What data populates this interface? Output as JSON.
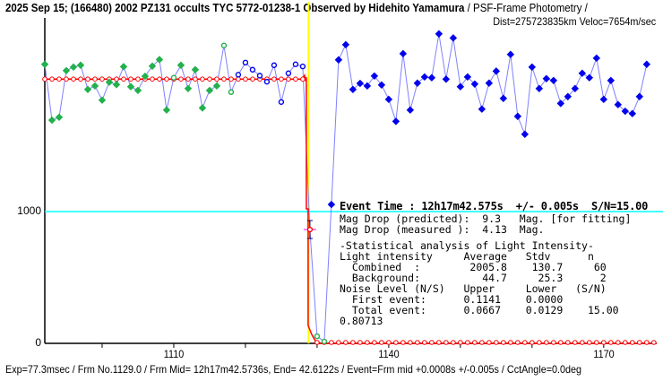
{
  "header": {
    "title_bold": "2025 Sep 15; (166480) 2002 PZ131 occults TYC 5772-01238-1 Observed by Hidehito Yamamura",
    "title_rest": " / PSF-Frame Photometry /",
    "dist": "Dist=275723835km Veloc=7654m/sec"
  },
  "event": {
    "line": "Event Time : 12h17m42.575s  +/- 0.005s  S/N=15.00",
    "mag_pred": "Mag Drop (predicted):  9.3   Mag. [for fitting]",
    "mag_meas": "Mag Drop (measured ):  4.13  Mag."
  },
  "stats": {
    "heading": "-Statistical analysis of Light Intensity-",
    "cols": "Light intensity     Average   Stdv      n",
    "combined": "  Combined  :        2005.8    130.7     60",
    "background": "  Background:          44.7     25.3      2",
    "noise": "Noise Level (N/S)   Upper     Lower   (S/N)",
    "first": "  First event:      0.1141    0.0000",
    "total": "  Total event:      0.0667    0.0129    15.00",
    "extra": "0.80713"
  },
  "footer": "Exp=77.3msec / Frm No.1129.0 / Frm Mid= 12h17m42.5736s,  End= 42.6122s / Event=Frm mid +0.0008s +/-0.005s / CctAngle=0.0deg",
  "colors": {
    "observed_line": "#8080ff",
    "blue": "#0000ee",
    "green": "#22b14c",
    "model": "#ff0000",
    "event_line": "#ffff00",
    "threshold": "#00ffff"
  },
  "chart_data": {
    "type": "line",
    "xlabel": "",
    "ylabel": "",
    "xlim": [
      1092,
      1177.4
    ],
    "ylim": [
      0,
      2470
    ],
    "x_ticks": [
      1110,
      1140,
      1170
    ],
    "x_minor_ticks": [
      1100,
      1110,
      1120,
      1130,
      1140,
      1150,
      1160,
      1170
    ],
    "y_ticks": [
      0,
      1000
    ],
    "threshold_level": 1000,
    "event_frame": 1129,
    "event_value": 864,
    "model_level": 2006,
    "model_bottom": 0,
    "observed": {
      "x_start": 1092,
      "values": [
        2118,
        1694,
        1716,
        2070,
        2097,
        2111,
        1927,
        1954,
        1846,
        1982,
        1964,
        2100,
        1948,
        1920,
        2027,
        2104,
        2154,
        1771,
        2016,
        2111,
        1934,
        2077,
        1787,
        1920,
        1954,
        2261,
        1907,
        2039,
        2131,
        2077,
        2032,
        1986,
        2111,
        1832,
        2050,
        2118,
        2102,
        860,
        54,
        14,
        1054,
        2152,
        2267,
        1927,
        1973,
        1954,
        2029,
        1961,
        1852,
        1685,
        2199,
        1771,
        1975,
        2022,
        2016,
        2349,
        2005,
        2318,
        1948,
        2022,
        1968,
        1778,
        1975,
        2066,
        1859,
        2193,
        1723,
        1587,
        2097,
        1934,
        2009,
        1995,
        1821,
        1873,
        1934,
        2050,
        2016,
        2165,
        1852,
        1995,
        1812,
        1762,
        1744,
        1873,
        2118
      ],
      "styles": [
        "gf",
        "gf",
        "gf",
        "gf",
        "gf",
        "gf",
        "gf",
        "gf",
        "gf",
        "gf",
        "gf",
        "gf",
        "gf",
        "gf",
        "gf",
        "gf",
        "gf",
        "gf",
        "go",
        "gf",
        "gf",
        "gf",
        "gf",
        "gf",
        "gf",
        "go",
        "go",
        "bo",
        "bo",
        "bo",
        "bo",
        "bo",
        "bo",
        "bo",
        "bo",
        "bo",
        "bo",
        "none",
        "go",
        "go",
        "bf",
        "bf",
        "bf",
        "bf",
        "bf",
        "bf",
        "bf",
        "bf",
        "bf",
        "bf",
        "bf",
        "bf",
        "bf",
        "bf",
        "bf",
        "bf",
        "bf",
        "bf",
        "bf",
        "bf",
        "bf",
        "bf",
        "bf",
        "bf",
        "bf",
        "bf",
        "bf",
        "bf",
        "bf",
        "bf",
        "bf",
        "bf",
        "bf",
        "bf",
        "bf",
        "bf",
        "bf",
        "bf",
        "bf",
        "bf",
        "bf",
        "bf",
        "bf",
        "bf",
        "bf"
      ]
    }
  }
}
